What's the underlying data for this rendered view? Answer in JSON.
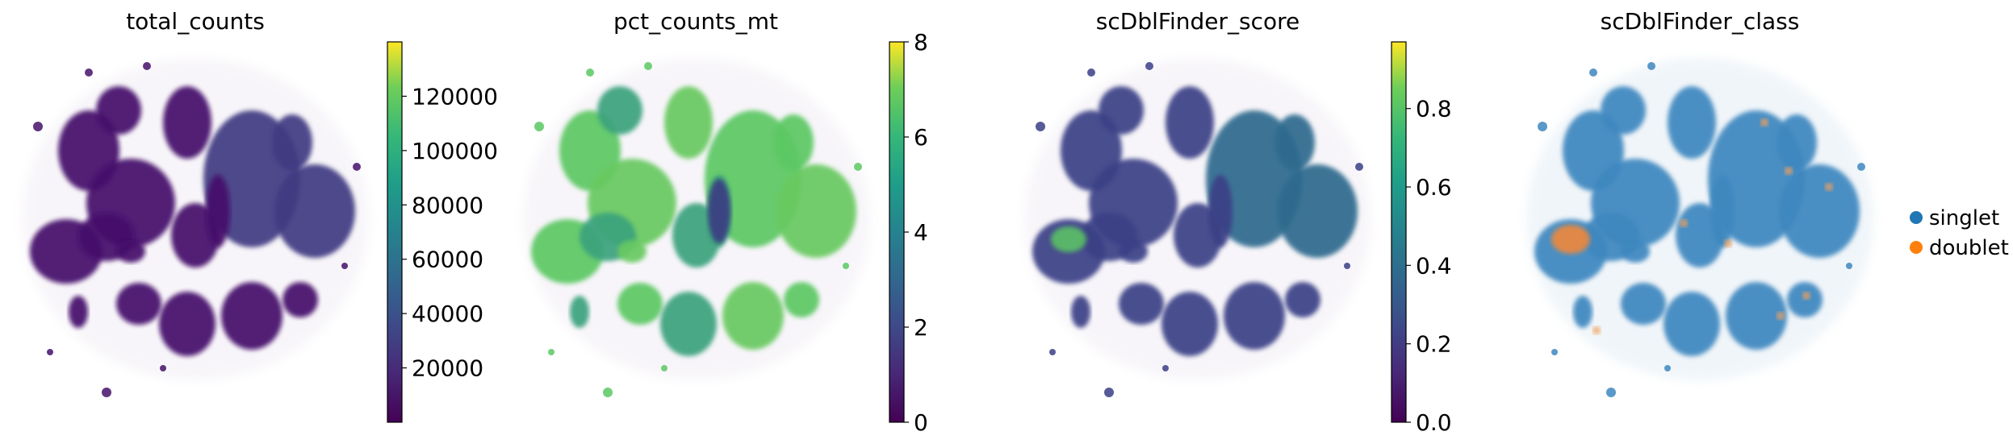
{
  "chart_data": [
    {
      "type": "scatter",
      "title": "total_counts",
      "color_by": "continuous",
      "colormap": "viridis",
      "colorbar": {
        "vmin": 0,
        "vmax": 140000,
        "ticks": [
          20000,
          40000,
          60000,
          80000,
          100000,
          120000
        ],
        "tick_labels": [
          "20000",
          "40000",
          "60000",
          "80000",
          "100000",
          "120000"
        ]
      }
    },
    {
      "type": "scatter",
      "title": "pct_counts_mt",
      "color_by": "continuous",
      "colormap": "viridis",
      "colorbar": {
        "vmin": 0,
        "vmax": 8,
        "ticks": [
          0,
          2,
          4,
          6,
          8
        ],
        "tick_labels": [
          "0",
          "2",
          "4",
          "6",
          "8"
        ]
      }
    },
    {
      "type": "scatter",
      "title": "scDblFinder_score",
      "color_by": "continuous",
      "colormap": "viridis",
      "colorbar": {
        "vmin": 0,
        "vmax": 0.97,
        "ticks": [
          0.0,
          0.2,
          0.4,
          0.6,
          0.8
        ],
        "tick_labels": [
          "0.0",
          "0.2",
          "0.4",
          "0.6",
          "0.8"
        ]
      }
    },
    {
      "type": "scatter",
      "title": "scDblFinder_class",
      "color_by": "categorical",
      "legend": [
        {
          "label": "singlet",
          "color": "#1f77b4"
        },
        {
          "label": "doublet",
          "color": "#ff7f0e"
        }
      ],
      "legend_placement": "right"
    }
  ]
}
